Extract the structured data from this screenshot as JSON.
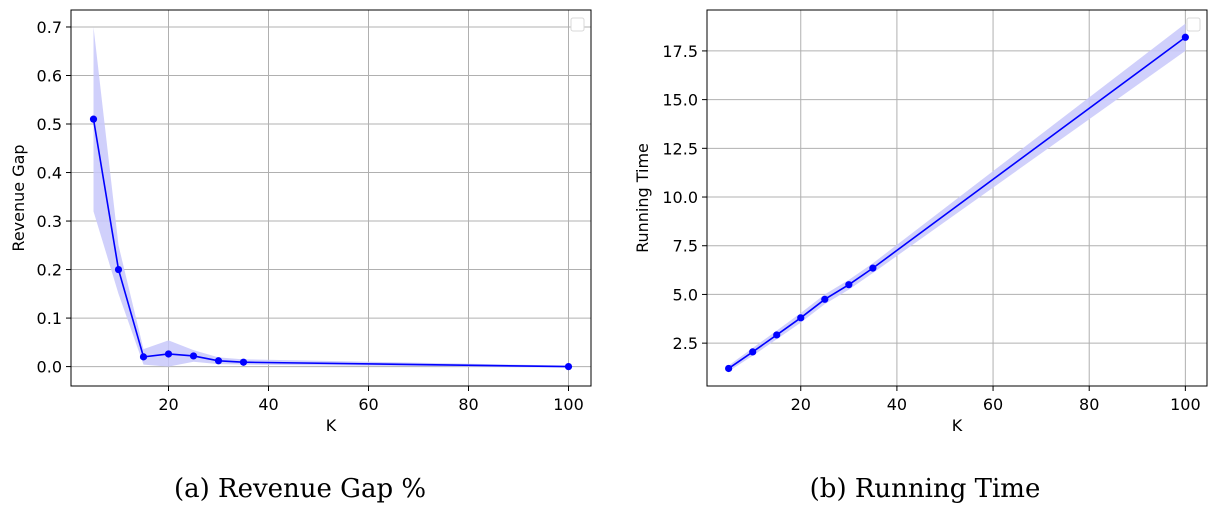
{
  "chart_data": [
    {
      "type": "line",
      "caption": "(a) Revenue Gap %",
      "xlabel": "K",
      "ylabel": "Revenue Gap",
      "xlim": [
        0.5,
        104.5
      ],
      "ylim": [
        -0.04,
        0.735
      ],
      "xticks": [
        20,
        40,
        60,
        80,
        100
      ],
      "yticks": [
        0.0,
        0.1,
        0.2,
        0.3,
        0.4,
        0.5,
        0.6,
        0.7
      ],
      "ytick_labels": [
        "0.0",
        "0.1",
        "0.2",
        "0.3",
        "0.4",
        "0.5",
        "0.6",
        "0.7"
      ],
      "grid": true,
      "legend": "top-right (empty)",
      "color": "#0000ff",
      "band_color": "#c8c8fa",
      "series": [
        {
          "x": [
            5,
            10,
            15,
            20,
            25,
            30,
            35,
            100
          ],
          "y": [
            0.51,
            0.2,
            0.02,
            0.026,
            0.022,
            0.012,
            0.009,
            0.0
          ],
          "lower": [
            0.32,
            0.15,
            0.004,
            0.0,
            0.01,
            0.005,
            0.004,
            -0.002
          ],
          "upper": [
            0.7,
            0.25,
            0.036,
            0.054,
            0.034,
            0.019,
            0.015,
            0.002
          ]
        }
      ]
    },
    {
      "type": "line",
      "caption": "(b) Running Time",
      "xlabel": "K",
      "ylabel": "Running Time",
      "xlim": [
        0.5,
        104.5
      ],
      "ylim": [
        0.3,
        19.6
      ],
      "xticks": [
        20,
        40,
        60,
        80,
        100
      ],
      "yticks": [
        2.5,
        5.0,
        7.5,
        10.0,
        12.5,
        15.0,
        17.5
      ],
      "ytick_labels": [
        "2.5",
        "5.0",
        "7.5",
        "10.0",
        "12.5",
        "15.0",
        "17.5"
      ],
      "grid": true,
      "legend": "top-right (empty)",
      "color": "#0000ff",
      "band_color": "#c8c8fa",
      "series": [
        {
          "x": [
            5,
            10,
            15,
            20,
            25,
            30,
            35,
            100
          ],
          "y": [
            1.2,
            2.05,
            2.92,
            3.8,
            4.75,
            5.5,
            6.35,
            18.2
          ],
          "lower": [
            1.05,
            1.85,
            2.7,
            3.55,
            4.5,
            5.25,
            6.1,
            17.5
          ],
          "upper": [
            1.35,
            2.25,
            3.14,
            4.05,
            5.0,
            5.75,
            6.6,
            18.9
          ]
        }
      ]
    }
  ]
}
